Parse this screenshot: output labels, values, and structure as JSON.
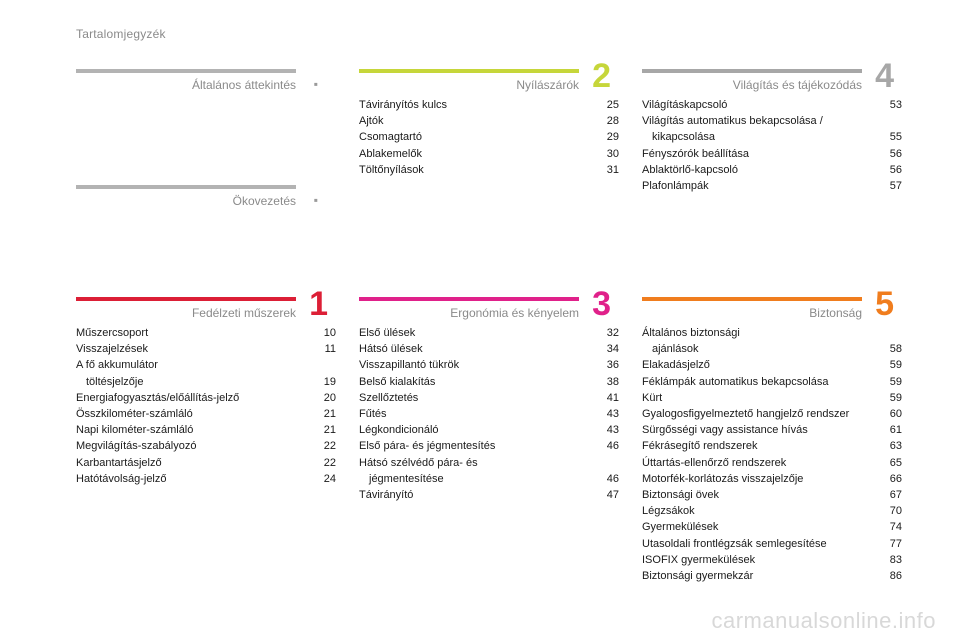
{
  "page_title": "Tartalomjegyzék",
  "watermark": "carmanualsonline.info",
  "sections": [
    {
      "id": "altalanos",
      "title": "Általános áttekintés",
      "number": "",
      "color": "#b3b3b3",
      "items": []
    },
    {
      "id": "okovezetes",
      "title": "Ökovezetés",
      "number": "",
      "color": "#b3b3b3",
      "items": []
    },
    {
      "id": "nyilaszarok",
      "title": "Nyílászárók",
      "number": "2",
      "color": "#c6d63a",
      "items": [
        {
          "label": "Távirányítós kulcs",
          "page": "25"
        },
        {
          "label": "Ajtók",
          "page": "28"
        },
        {
          "label": "Csomagtartó",
          "page": "29"
        },
        {
          "label": "Ablakemelők",
          "page": "30"
        },
        {
          "label": "Töltőnyílások",
          "page": "31"
        }
      ]
    },
    {
      "id": "vilagitas",
      "title": "Világítás és tájékozódás",
      "number": "4",
      "color": "#a7a7a7",
      "items": [
        {
          "label": "Világításkapcsoló",
          "page": "53"
        },
        {
          "label": "Világítás automatikus bekapcsolása /",
          "label2": "kikapcsolása",
          "page": "55"
        },
        {
          "label": "Fényszórók beállítása",
          "page": "56"
        },
        {
          "label": "Ablaktörlő-kapcsoló",
          "page": "56"
        },
        {
          "label": "Plafonlámpák",
          "page": "57"
        }
      ]
    },
    {
      "id": "fedelzeti",
      "title": "Fedélzeti műszerek",
      "number": "1",
      "color": "#dc1f36",
      "items": [
        {
          "label": "Műszercsoport",
          "page": "10"
        },
        {
          "label": "Visszajelzések",
          "page": "11"
        },
        {
          "label": "A fő akkumulátor",
          "label2": "töltésjelzője",
          "page": "19"
        },
        {
          "label": "Energiafogyasztás/előállítás-jelző",
          "page": "20"
        },
        {
          "label": "Összkilométer-számláló",
          "page": "21"
        },
        {
          "label": "Napi kilométer-számláló",
          "page": "21"
        },
        {
          "label": "Megvilágítás-szabályozó",
          "page": "22"
        },
        {
          "label": "Karbantartásjelző",
          "page": "22"
        },
        {
          "label": "Hatótávolság-jelző",
          "page": "24"
        }
      ]
    },
    {
      "id": "ergonomia",
      "title": "Ergonómia és kényelem",
      "number": "3",
      "color": "#e0218a",
      "items": [
        {
          "label": "Első ülések",
          "page": "32"
        },
        {
          "label": "Hátsó ülések",
          "page": "34"
        },
        {
          "label": "Visszapillantó tükrök",
          "page": "36"
        },
        {
          "label": "Belső kialakítás",
          "page": "38"
        },
        {
          "label": "Szellőztetés",
          "page": "41"
        },
        {
          "label": "Fűtés",
          "page": "43"
        },
        {
          "label": "Légkondicionáló",
          "page": "43"
        },
        {
          "label": "Első pára- és jégmentesítés",
          "page": "46"
        },
        {
          "label": "Hátsó szélvédő pára- és",
          "label2": "jégmentesítése",
          "page": "46"
        },
        {
          "label": "Távirányító",
          "page": "47"
        }
      ]
    },
    {
      "id": "biztonsag",
      "title": "Biztonság",
      "number": "5",
      "color": "#f07d1e",
      "items": [
        {
          "label": "Általános biztonsági",
          "label2": "ajánlások",
          "page": "58"
        },
        {
          "label": "Elakadásjelző",
          "page": "59"
        },
        {
          "label": "Féklámpák automatikus bekapcsolása",
          "page": "59"
        },
        {
          "label": "Kürt",
          "page": "59"
        },
        {
          "label": "Gyalogosfigyelmeztető hangjelző rendszer",
          "page": "60"
        },
        {
          "label": "Sürgősségi vagy assistance hívás",
          "page": "61"
        },
        {
          "label": "Fékrásegítő rendszerek",
          "page": "63"
        },
        {
          "label": "Úttartás-ellenőrző rendszerek",
          "page": "65"
        },
        {
          "label": "Motorfék-korlátozás visszajelzője",
          "page": "66"
        },
        {
          "label": "Biztonsági övek",
          "page": "67"
        },
        {
          "label": "Légzsákok",
          "page": "70"
        },
        {
          "label": "Gyermekülések",
          "page": "74"
        },
        {
          "label": "Utasoldali frontlégzsák semlegesítése",
          "page": "77"
        },
        {
          "label": "ISOFIX gyermekülések",
          "page": "83"
        },
        {
          "label": "Biztonsági gyermekzár",
          "page": "86"
        }
      ]
    }
  ]
}
